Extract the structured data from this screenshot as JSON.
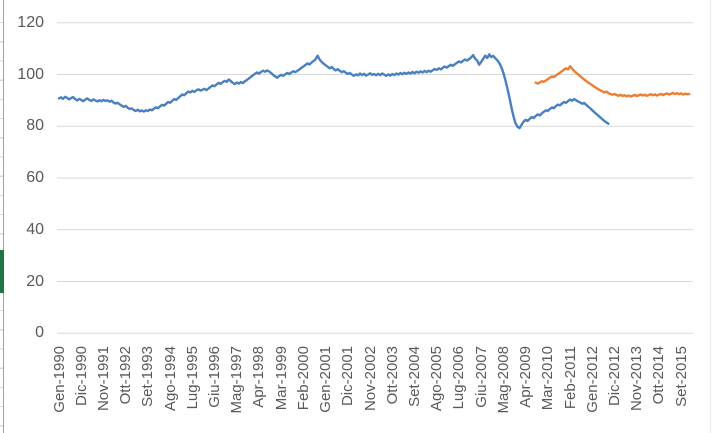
{
  "window": {
    "left_edge_border_color": "#a0a0a0",
    "green_accent_color": "#217346"
  },
  "chart_data": {
    "type": "line",
    "title": "",
    "xlabel": "",
    "ylabel": "",
    "grid": "horizontal-only",
    "legend": "none",
    "gridline_color": "#d9d9d9",
    "label_color": "#595959",
    "y_axis": {
      "min": 0,
      "max": 120,
      "tick_interval": 20,
      "ticks": [
        120,
        100,
        80,
        60,
        40,
        20,
        0
      ],
      "tick_labels": [
        "120",
        "100",
        "80",
        "60",
        "40",
        "20",
        "0"
      ]
    },
    "x_axis": {
      "unit": "month",
      "months_between_tick_labels": 11,
      "first_point": "Gen-1990",
      "tick_labels": [
        "Gen-1990",
        "Dic-1990",
        "Nov-1991",
        "Ott-1992",
        "Set-1993",
        "Ago-1994",
        "Lug-1995",
        "Giu-1996",
        "Mag-1997",
        "Apr-1998",
        "Mar-1999",
        "Feb-2000",
        "Gen-2001",
        "Dic-2001",
        "Nov-2002",
        "Ott-2003",
        "Set-2004",
        "Ago-2005",
        "Lug-2006",
        "Giu-2007",
        "Mag-2008",
        "Apr-2009",
        "Mar-2010",
        "Feb-2011",
        "Gen-2012",
        "Dic-2012",
        "Nov-2013",
        "Ott-2014",
        "Set-2015"
      ]
    },
    "series": [
      {
        "name": "blue",
        "color": "#4a80c0",
        "start_month": 0,
        "values": [
          90.8,
          91.2,
          90.6,
          91.4,
          91.0,
          90.4,
          90.9,
          91.3,
          90.5,
          90.0,
          90.6,
          90.2,
          89.7,
          90.3,
          90.8,
          90.2,
          89.8,
          90.4,
          90.0,
          89.6,
          90.1,
          89.7,
          90.2,
          89.8,
          90.0,
          89.5,
          89.9,
          89.2,
          88.8,
          89.1,
          88.5,
          88.0,
          87.5,
          87.9,
          87.2,
          86.7,
          86.9,
          86.3,
          85.9,
          86.4,
          85.8,
          86.1,
          85.7,
          86.2,
          85.9,
          86.5,
          86.2,
          86.8,
          87.3,
          87.0,
          87.7,
          88.3,
          88.0,
          88.7,
          89.4,
          89.1,
          89.8,
          90.5,
          90.2,
          90.9,
          91.6,
          92.3,
          92.0,
          92.8,
          93.4,
          93.1,
          93.7,
          93.3,
          93.9,
          94.3,
          93.8,
          94.1,
          94.5,
          94.0,
          94.6,
          95.2,
          95.8,
          95.5,
          96.2,
          96.8,
          96.4,
          97.0,
          97.6,
          97.2,
          98.1,
          97.5,
          96.8,
          96.3,
          96.9,
          96.5,
          97.1,
          96.7,
          97.4,
          97.9,
          98.5,
          99.1,
          99.7,
          100.3,
          100.8,
          100.4,
          101.0,
          101.5,
          101.1,
          101.6,
          101.2,
          100.6,
          99.9,
          99.3,
          98.8,
          99.4,
          99.9,
          99.5,
          100.1,
          100.6,
          100.2,
          100.8,
          101.3,
          100.9,
          101.5,
          102.0,
          102.6,
          103.1,
          103.7,
          104.3,
          103.9,
          104.6,
          105.2,
          105.9,
          107.3,
          105.8,
          104.9,
          104.2,
          103.6,
          103.0,
          102.4,
          102.9,
          102.2,
          101.6,
          102.1,
          101.4,
          100.9,
          101.3,
          100.7,
          100.2,
          100.6,
          100.0,
          99.5,
          100.1,
          99.7,
          100.4,
          99.8,
          100.3,
          99.6,
          100.0,
          100.5,
          99.9,
          100.2,
          99.7,
          100.3,
          99.8,
          100.4,
          100.0,
          99.5,
          100.1,
          99.6,
          100.2,
          99.8,
          100.4,
          100.0,
          100.6,
          100.1,
          100.7,
          100.3,
          100.8,
          100.4,
          101.0,
          100.5,
          101.1,
          100.7,
          101.2,
          100.8,
          101.4,
          100.9,
          101.5,
          101.1,
          101.7,
          102.2,
          101.8,
          102.4,
          102.0,
          102.6,
          103.1,
          102.7,
          103.3,
          103.8,
          103.4,
          104.0,
          104.5,
          105.1,
          104.7,
          105.3,
          105.8,
          105.4,
          106.0,
          106.6,
          107.5,
          106.2,
          105.4,
          103.8,
          104.9,
          106.1,
          107.3,
          106.4,
          107.8,
          106.8,
          107.2,
          106.3,
          105.5,
          104.4,
          102.8,
          100.6,
          97.8,
          94.6,
          91.0,
          87.2,
          83.8,
          81.2,
          79.8,
          79.3,
          80.6,
          81.8,
          82.5,
          82.1,
          82.9,
          83.6,
          83.2,
          84.0,
          84.6,
          84.2,
          85.0,
          85.6,
          86.2,
          85.9,
          86.7,
          87.3,
          87.0,
          87.8,
          88.4,
          88.1,
          88.8,
          89.4,
          89.1,
          89.7,
          90.3,
          89.9,
          90.5,
          90.1,
          89.6,
          89.2,
          88.7,
          89.0,
          88.3,
          87.6,
          86.9,
          86.2,
          85.5,
          84.8,
          84.1,
          83.4,
          82.7,
          82.1,
          81.5,
          81.0
        ]
      },
      {
        "name": "orange",
        "color": "#ed7d31",
        "start_month": 236,
        "values": [
          96.9,
          96.5,
          96.9,
          97.4,
          97.2,
          97.7,
          98.2,
          98.8,
          99.3,
          99.0,
          99.6,
          100.2,
          100.7,
          101.3,
          101.9,
          102.4,
          102.0,
          103.2,
          102.3,
          101.4,
          100.7,
          100.1,
          99.4,
          98.7,
          98.1,
          97.5,
          96.9,
          96.4,
          95.9,
          95.3,
          94.8,
          94.3,
          93.9,
          93.5,
          93.1,
          93.4,
          92.8,
          92.5,
          92.2,
          92.5,
          92.1,
          91.8,
          92.2,
          91.7,
          92.0,
          91.6,
          91.9,
          91.5,
          91.8,
          92.1,
          91.7,
          92.0,
          92.3,
          91.9,
          92.2,
          91.8,
          92.1,
          92.4,
          92.0,
          92.3,
          91.9,
          92.2,
          92.5,
          92.1,
          92.4,
          92.7,
          92.3,
          92.6,
          92.9,
          92.5,
          92.8,
          92.4,
          92.7,
          92.3,
          92.6,
          92.4,
          92.5
        ]
      }
    ]
  }
}
